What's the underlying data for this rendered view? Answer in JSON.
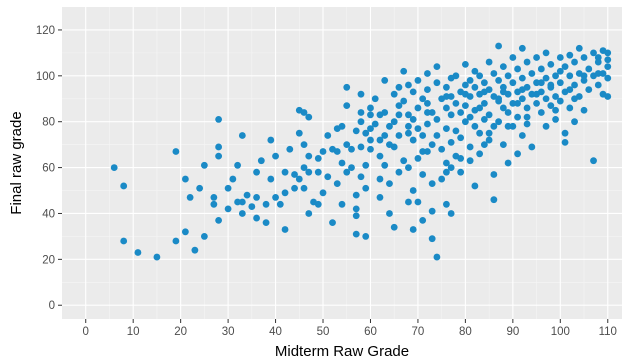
{
  "chart_data": {
    "type": "scatter",
    "title": "",
    "xlabel": "Midterm Raw Grade",
    "ylabel": "Final raw grade",
    "xlim": [
      -5,
      113
    ],
    "ylim": [
      -6,
      130
    ],
    "x_ticks": [
      0,
      10,
      20,
      30,
      40,
      50,
      60,
      70,
      80,
      90,
      100,
      110
    ],
    "y_ticks": [
      0,
      20,
      40,
      60,
      80,
      100,
      120
    ],
    "grid": true,
    "background": "#ebebeb",
    "point_color": "#1a8ac6",
    "legend": "none",
    "series": [
      {
        "points": [
          [
            6,
            60
          ],
          [
            8,
            52
          ],
          [
            8,
            28
          ],
          [
            11,
            23
          ],
          [
            15,
            21
          ],
          [
            19,
            28
          ],
          [
            19,
            67
          ],
          [
            21,
            55
          ],
          [
            21,
            32
          ],
          [
            22,
            47
          ],
          [
            23,
            24
          ],
          [
            24,
            51
          ],
          [
            25,
            30
          ],
          [
            25,
            61
          ],
          [
            27,
            44
          ],
          [
            28,
            37
          ],
          [
            28,
            65
          ],
          [
            28,
            69
          ],
          [
            28,
            81
          ],
          [
            30,
            42
          ],
          [
            30,
            51
          ],
          [
            32,
            61
          ],
          [
            32,
            45
          ],
          [
            33,
            74
          ],
          [
            33,
            40
          ],
          [
            34,
            48
          ],
          [
            35,
            43
          ],
          [
            36,
            38
          ],
          [
            36,
            47
          ],
          [
            37,
            63
          ],
          [
            38,
            44
          ],
          [
            38,
            36
          ],
          [
            39,
            72
          ],
          [
            40,
            65
          ],
          [
            40,
            47
          ],
          [
            41,
            44
          ],
          [
            42,
            33
          ],
          [
            42,
            49
          ],
          [
            43,
            68
          ],
          [
            44,
            51
          ],
          [
            44,
            57
          ],
          [
            45,
            55
          ],
          [
            45,
            75
          ],
          [
            45,
            85
          ],
          [
            46,
            84
          ],
          [
            46,
            60
          ],
          [
            46,
            51
          ],
          [
            47,
            65
          ],
          [
            47,
            82
          ],
          [
            47,
            58
          ],
          [
            47,
            40
          ],
          [
            48,
            45
          ],
          [
            49,
            64
          ],
          [
            49,
            44
          ],
          [
            50,
            67
          ],
          [
            50,
            49
          ],
          [
            51,
            56
          ],
          [
            51,
            74
          ],
          [
            52,
            68
          ],
          [
            52,
            36
          ],
          [
            53,
            77
          ],
          [
            53,
            67
          ],
          [
            54,
            62
          ],
          [
            54,
            78
          ],
          [
            54,
            44
          ],
          [
            55,
            70
          ],
          [
            55,
            87
          ],
          [
            55,
            95
          ],
          [
            55,
            58
          ],
          [
            56,
            60
          ],
          [
            57,
            76
          ],
          [
            57,
            31
          ],
          [
            57,
            48
          ],
          [
            57,
            39
          ],
          [
            57,
            42
          ],
          [
            58,
            92
          ],
          [
            58,
            84
          ],
          [
            58,
            80
          ],
          [
            58,
            69
          ],
          [
            58,
            56
          ],
          [
            59,
            75
          ],
          [
            59,
            30
          ],
          [
            59,
            51
          ],
          [
            60,
            83
          ],
          [
            60,
            77
          ],
          [
            60,
            68
          ],
          [
            60,
            86
          ],
          [
            61,
            79
          ],
          [
            61,
            90
          ],
          [
            62,
            83
          ],
          [
            62,
            65
          ],
          [
            62,
            55
          ],
          [
            62,
            47
          ],
          [
            63,
            84
          ],
          [
            63,
            98
          ],
          [
            63,
            74
          ],
          [
            63,
            61
          ],
          [
            64,
            40
          ],
          [
            64,
            53
          ],
          [
            64,
            78
          ],
          [
            65,
            92
          ],
          [
            65,
            80
          ],
          [
            65,
            69
          ],
          [
            65,
            34
          ],
          [
            66,
            87
          ],
          [
            66,
            95
          ],
          [
            66,
            74
          ],
          [
            66,
            58
          ],
          [
            67,
            102
          ],
          [
            67,
            89
          ],
          [
            67,
            63
          ],
          [
            68,
            96
          ],
          [
            68,
            75
          ],
          [
            68,
            83
          ],
          [
            68,
            60
          ],
          [
            68,
            45
          ],
          [
            69,
            93
          ],
          [
            69,
            81
          ],
          [
            69,
            72
          ],
          [
            69,
            50
          ],
          [
            69,
            33
          ],
          [
            70,
            98
          ],
          [
            70,
            86
          ],
          [
            70,
            77
          ],
          [
            70,
            64
          ],
          [
            71,
            90
          ],
          [
            71,
            74
          ],
          [
            71,
            57
          ],
          [
            71,
            37
          ],
          [
            72,
            101
          ],
          [
            72,
            94
          ],
          [
            72,
            79
          ],
          [
            72,
            67
          ],
          [
            72,
            88
          ],
          [
            73,
            84
          ],
          [
            73,
            70
          ],
          [
            73,
            41
          ],
          [
            73,
            29
          ],
          [
            74,
            21
          ],
          [
            74,
            97
          ],
          [
            74,
            104
          ],
          [
            74,
            81
          ],
          [
            74,
            74
          ],
          [
            75,
            90
          ],
          [
            75,
            68
          ],
          [
            75,
            55
          ],
          [
            76,
            95
          ],
          [
            76,
            86
          ],
          [
            76,
            77
          ],
          [
            76,
            62
          ],
          [
            76,
            44
          ],
          [
            77,
            99
          ],
          [
            77,
            91
          ],
          [
            77,
            83
          ],
          [
            77,
            71
          ],
          [
            77,
            40
          ],
          [
            78,
            100
          ],
          [
            78,
            88
          ],
          [
            78,
            76
          ],
          [
            78,
            65
          ],
          [
            79,
            93
          ],
          [
            79,
            84
          ],
          [
            79,
            73
          ],
          [
            79,
            58
          ],
          [
            80,
            105
          ],
          [
            80,
            96
          ],
          [
            80,
            87
          ],
          [
            80,
            80
          ],
          [
            81,
            98
          ],
          [
            81,
            91
          ],
          [
            81,
            82
          ],
          [
            81,
            69
          ],
          [
            82,
            102
          ],
          [
            82,
            95
          ],
          [
            82,
            85
          ],
          [
            82,
            78
          ],
          [
            82,
            52
          ],
          [
            83,
            100
          ],
          [
            83,
            92
          ],
          [
            83,
            75
          ],
          [
            83,
            66
          ],
          [
            84,
            97
          ],
          [
            84,
            88
          ],
          [
            84,
            81
          ],
          [
            85,
            106
          ],
          [
            85,
            94
          ],
          [
            85,
            83
          ],
          [
            85,
            72
          ],
          [
            86,
            101
          ],
          [
            86,
            91
          ],
          [
            86,
            78
          ],
          [
            86,
            57
          ],
          [
            86,
            46
          ],
          [
            87,
            113
          ],
          [
            87,
            98
          ],
          [
            87,
            89
          ],
          [
            87,
            80
          ],
          [
            88,
            104
          ],
          [
            88,
            95
          ],
          [
            88,
            86
          ],
          [
            88,
            70
          ],
          [
            89,
            100
          ],
          [
            89,
            92
          ],
          [
            89,
            84
          ],
          [
            89,
            62
          ],
          [
            90,
            108
          ],
          [
            90,
            97
          ],
          [
            90,
            88
          ],
          [
            90,
            78
          ],
          [
            91,
            103
          ],
          [
            91,
            93
          ],
          [
            91,
            82
          ],
          [
            91,
            66
          ],
          [
            92,
            112
          ],
          [
            92,
            99
          ],
          [
            92,
            90
          ],
          [
            92,
            74
          ],
          [
            93,
            106
          ],
          [
            93,
            95
          ],
          [
            93,
            86
          ],
          [
            93,
            79
          ],
          [
            94,
            101
          ],
          [
            94,
            92
          ],
          [
            94,
            69
          ],
          [
            95,
            108
          ],
          [
            95,
            97
          ],
          [
            95,
            88
          ],
          [
            96,
            103
          ],
          [
            96,
            93
          ],
          [
            96,
            84
          ],
          [
            97,
            110
          ],
          [
            97,
            99
          ],
          [
            97,
            78
          ],
          [
            98,
            105
          ],
          [
            98,
            95
          ],
          [
            98,
            87
          ],
          [
            99,
            100
          ],
          [
            99,
            91
          ],
          [
            99,
            81
          ],
          [
            100,
            108
          ],
          [
            100,
            97
          ],
          [
            100,
            89
          ],
          [
            101,
            104
          ],
          [
            101,
            93
          ],
          [
            101,
            75
          ],
          [
            101,
            71
          ],
          [
            102,
            109
          ],
          [
            102,
            100
          ],
          [
            102,
            86
          ],
          [
            103,
            106
          ],
          [
            103,
            96
          ],
          [
            103,
            80
          ],
          [
            104,
            112
          ],
          [
            104,
            101
          ],
          [
            104,
            91
          ],
          [
            105,
            108
          ],
          [
            105,
            98
          ],
          [
            105,
            85
          ],
          [
            106,
            103
          ],
          [
            106,
            94
          ],
          [
            107,
            110
          ],
          [
            107,
            100
          ],
          [
            107,
            63
          ],
          [
            108,
            106
          ],
          [
            108,
            96
          ],
          [
            108,
            108
          ],
          [
            109,
            111
          ],
          [
            109,
            101
          ],
          [
            109,
            92
          ],
          [
            110,
            107
          ],
          [
            110,
            104
          ],
          [
            110,
            99
          ],
          [
            110,
            110
          ],
          [
            110,
            91
          ],
          [
            84,
            70
          ],
          [
            76,
            58
          ],
          [
            71,
            67
          ],
          [
            66,
            83
          ],
          [
            62,
            72
          ],
          [
            59,
            61
          ],
          [
            56,
            68
          ],
          [
            53,
            53
          ],
          [
            49,
            58
          ],
          [
            46,
            70
          ],
          [
            42,
            58
          ],
          [
            39,
            55
          ],
          [
            36,
            58
          ],
          [
            33,
            45
          ],
          [
            31,
            55
          ],
          [
            27,
            47
          ],
          [
            79,
            64
          ],
          [
            83,
            86
          ],
          [
            87,
            90
          ],
          [
            91,
            88
          ],
          [
            95,
            92
          ],
          [
            98,
            96
          ],
          [
            102,
            94
          ],
          [
            105,
            100
          ],
          [
            108,
            101
          ],
          [
            100,
            102
          ],
          [
            96,
            97
          ],
          [
            92,
            94
          ],
          [
            88,
            93
          ],
          [
            84,
            93
          ],
          [
            80,
            92
          ],
          [
            76,
            91
          ],
          [
            72,
            84
          ],
          [
            68,
            78
          ],
          [
            64,
            70
          ],
          [
            60,
            72
          ],
          [
            70,
            45
          ],
          [
            73,
            53
          ],
          [
            77,
            60
          ],
          [
            81,
            63
          ],
          [
            85,
            75
          ],
          [
            89,
            78
          ],
          [
            93,
            82
          ],
          [
            97,
            90
          ],
          [
            99,
            85
          ],
          [
            103,
            90
          ]
        ]
      }
    ]
  }
}
